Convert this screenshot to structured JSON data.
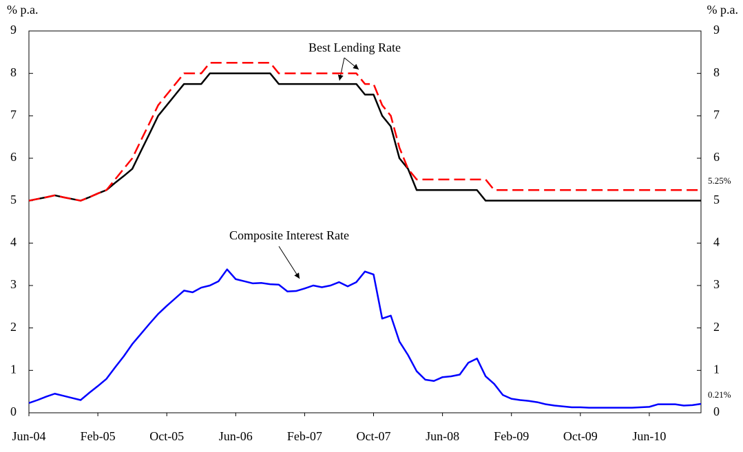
{
  "chart_data": {
    "type": "line",
    "y_label": "% p.a.",
    "y2_label": "% p.a.",
    "annotations": [
      "Best Lending Rate",
      "Composite Interest Rate"
    ],
    "categories": [
      "Jun-04",
      null,
      null,
      null,
      null,
      null,
      null,
      null,
      "Feb-05",
      null,
      null,
      null,
      null,
      null,
      null,
      null,
      "Oct-05",
      null,
      null,
      null,
      null,
      null,
      null,
      null,
      "Jun-06",
      null,
      null,
      null,
      null,
      null,
      null,
      null,
      "Feb-07",
      null,
      null,
      null,
      null,
      null,
      null,
      null,
      "Oct-07",
      null,
      null,
      null,
      null,
      null,
      null,
      null,
      "Jun-08",
      null,
      null,
      null,
      null,
      null,
      null,
      null,
      "Feb-09",
      null,
      null,
      null,
      null,
      null,
      null,
      null,
      "Oct-09",
      null,
      null,
      null,
      null,
      null,
      null,
      null,
      "Jun-10",
      null,
      null,
      null,
      null,
      null,
      null
    ],
    "series": [
      {
        "color": "#000000",
        "dashed": false,
        "values": [
          5.0,
          5.04,
          5.08,
          5.125,
          5.08,
          5.04,
          5.0,
          5.08,
          5.17,
          5.25,
          5.42,
          5.58,
          5.75,
          6.17,
          6.58,
          7.0,
          7.25,
          7.5,
          7.75,
          7.75,
          7.75,
          8.0,
          8.0,
          8.0,
          8.0,
          8.0,
          8.0,
          8.0,
          8.0,
          7.75,
          7.75,
          7.75,
          7.75,
          7.75,
          7.75,
          7.75,
          7.75,
          7.75,
          7.75,
          7.5,
          7.5,
          7.0,
          6.75,
          6.0,
          5.75,
          5.25,
          5.25,
          5.25,
          5.25,
          5.25,
          5.25,
          5.25,
          5.25,
          5.0,
          5.0,
          5.0,
          5.0,
          5.0,
          5.0,
          5.0,
          5.0,
          5.0,
          5.0,
          5.0,
          5.0,
          5.0,
          5.0,
          5.0,
          5.0,
          5.0,
          5.0,
          5.0,
          5.0,
          5.0,
          5.0,
          5.0,
          5.0,
          5.0,
          5.0
        ]
      },
      {
        "color": "#ff0000",
        "dashed": true,
        "values": [
          5.0,
          5.04,
          5.08,
          5.125,
          5.08,
          5.04,
          5.0,
          5.08,
          5.17,
          5.25,
          5.5,
          5.75,
          6.0,
          6.42,
          6.83,
          7.25,
          7.5,
          7.75,
          8.0,
          8.0,
          8.0,
          8.25,
          8.25,
          8.25,
          8.25,
          8.25,
          8.25,
          8.25,
          8.25,
          8.0,
          8.0,
          8.0,
          8.0,
          8.0,
          8.0,
          8.0,
          8.0,
          8.0,
          8.0,
          7.75,
          7.75,
          7.25,
          7.0,
          6.25,
          5.75,
          5.5,
          5.5,
          5.5,
          5.5,
          5.5,
          5.5,
          5.5,
          5.5,
          5.5,
          5.25,
          5.25,
          5.25,
          5.25,
          5.25,
          5.25,
          5.25,
          5.25,
          5.25,
          5.25,
          5.25,
          5.25,
          5.25,
          5.25,
          5.25,
          5.25,
          5.25,
          5.25,
          5.25,
          5.25,
          5.25,
          5.25,
          5.25,
          5.25,
          5.25
        ],
        "value_labels": [
          null,
          null,
          null,
          null,
          null,
          null,
          null,
          null,
          null,
          null,
          null,
          null,
          null,
          null,
          null,
          null,
          null,
          null,
          null,
          null,
          null,
          null,
          null,
          null,
          null,
          null,
          null,
          null,
          null,
          null,
          null,
          null,
          null,
          null,
          null,
          null,
          null,
          null,
          null,
          null,
          null,
          null,
          null,
          null,
          null,
          null,
          null,
          null,
          null,
          null,
          null,
          null,
          null,
          null,
          null,
          null,
          null,
          null,
          null,
          null,
          null,
          null,
          null,
          null,
          null,
          null,
          null,
          null,
          null,
          null,
          null,
          null,
          null,
          null,
          null,
          null,
          null,
          null,
          "5.25%"
        ]
      },
      {
        "color": "#0000ff",
        "dashed": false,
        "values": [
          0.23,
          0.3,
          0.38,
          0.45,
          0.4,
          0.35,
          0.3,
          0.47,
          0.63,
          0.8,
          1.07,
          1.33,
          1.62,
          1.86,
          2.1,
          2.33,
          2.52,
          2.7,
          2.88,
          2.84,
          2.95,
          3.0,
          3.1,
          3.38,
          3.15,
          3.1,
          3.05,
          3.06,
          3.03,
          3.02,
          2.86,
          2.87,
          2.93,
          3.0,
          2.96,
          3.0,
          3.08,
          2.98,
          3.08,
          3.33,
          3.26,
          2.22,
          2.29,
          1.68,
          1.36,
          0.98,
          0.78,
          0.75,
          0.84,
          0.86,
          0.9,
          1.18,
          1.28,
          0.86,
          0.68,
          0.42,
          0.33,
          0.3,
          0.28,
          0.25,
          0.2,
          0.17,
          0.15,
          0.13,
          0.13,
          0.12,
          0.12,
          0.12,
          0.12,
          0.12,
          0.12,
          0.13,
          0.14,
          0.2,
          0.2,
          0.2,
          0.17,
          0.18,
          0.21
        ],
        "value_labels": [
          null,
          null,
          null,
          null,
          null,
          null,
          null,
          null,
          null,
          null,
          null,
          null,
          null,
          null,
          null,
          null,
          null,
          null,
          null,
          null,
          null,
          null,
          null,
          null,
          null,
          null,
          null,
          null,
          null,
          null,
          null,
          null,
          null,
          null,
          null,
          null,
          null,
          null,
          null,
          null,
          null,
          null,
          null,
          null,
          null,
          null,
          null,
          null,
          null,
          null,
          null,
          null,
          null,
          null,
          null,
          null,
          null,
          null,
          null,
          null,
          null,
          null,
          null,
          null,
          null,
          null,
          null,
          null,
          null,
          null,
          null,
          null,
          null,
          null,
          null,
          null,
          null,
          null,
          "0.21%"
        ]
      }
    ],
    "ylim": [
      0,
      9
    ],
    "yticks": [
      0,
      1,
      2,
      3,
      4,
      5,
      6,
      7,
      8,
      9
    ],
    "y2lim": [
      0,
      9
    ],
    "y2ticks": [
      0,
      1,
      2,
      3,
      4,
      5,
      6,
      7,
      8,
      9
    ]
  }
}
